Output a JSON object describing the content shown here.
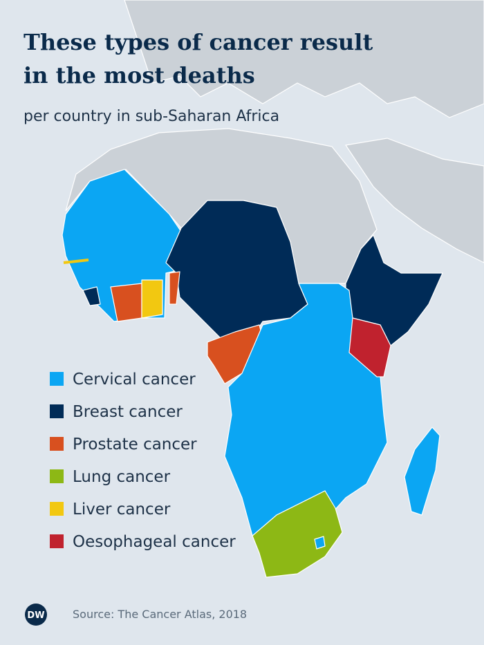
{
  "title_lines": [
    "These types of cancer result",
    "in the most deaths"
  ],
  "subtitle": "per country in sub-Saharan Africa",
  "legend": [
    {
      "label": "Cervical cancer",
      "color": "#0ba6f3"
    },
    {
      "label": "Breast cancer",
      "color": "#002b57"
    },
    {
      "label": "Prostate cancer",
      "color": "#d8501f"
    },
    {
      "label": "Lung cancer",
      "color": "#8db815"
    },
    {
      "label": "Liver cancer",
      "color": "#f2c811"
    },
    {
      "label": "Oesophageal cancer",
      "color": "#c0222e"
    }
  ],
  "source": "Source: The Cancer Atlas, 2018",
  "logo": "DW"
}
